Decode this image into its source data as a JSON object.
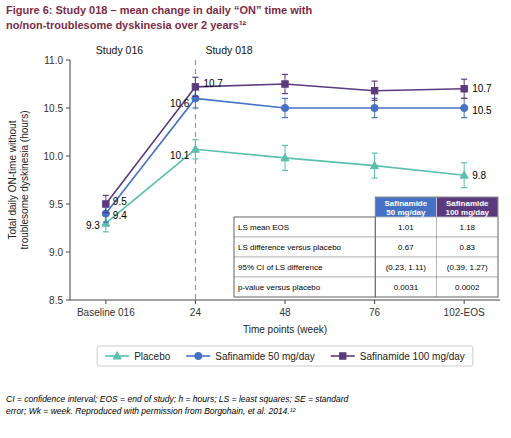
{
  "chart_data": {
    "type": "line",
    "title": "Figure 6: Study 018 – mean change in daily “ON” time with\nno/non-troublesome dyskinesia over 2 years¹²",
    "x_label": "Time points (week)",
    "y_label": "Total daily ON-time without\ntroublesome dyskinesia (hours)",
    "categories": [
      "Baseline 016",
      "24",
      "48",
      "76",
      "102-EOS"
    ],
    "ylim": [
      8.5,
      11.0
    ],
    "yticks": [
      8.5,
      {
        "value": 9.0,
        "label": "9.0"
      },
      9.5,
      {
        "value": 10.0,
        "label": "10.0"
      },
      10.5,
      {
        "value": 11.0,
        "label": "11.0"
      }
    ],
    "grid": false,
    "legend": "bottom",
    "data_labels": true,
    "series": [
      {
        "name": "Placebo",
        "color": "#5BBFAD",
        "marker": "triangle",
        "values": [
          9.3,
          10.07,
          9.98,
          9.9,
          9.8
        ],
        "errors": [
          0.09,
          0.1,
          0.13,
          0.13,
          0.13
        ],
        "value_labels": [
          "9.3",
          "10.1",
          null,
          null,
          "9.8"
        ]
      },
      {
        "name": "Safinamide 50 mg/day",
        "color": "#4472C4",
        "marker": "circle",
        "values": [
          9.4,
          10.6,
          10.5,
          10.5,
          10.5
        ],
        "errors": [
          0.09,
          0.1,
          0.1,
          0.1,
          0.1
        ],
        "value_labels": [
          "9.4",
          "10.6",
          null,
          null,
          "10.5"
        ]
      },
      {
        "name": "Safinamide 100 mg/day",
        "color": "#5B3A7E",
        "marker": "square",
        "values": [
          9.5,
          10.72,
          10.75,
          10.68,
          10.7
        ],
        "errors": [
          0.09,
          0.1,
          0.1,
          0.1,
          0.1
        ],
        "value_labels": [
          "9.5",
          "10.7",
          null,
          null,
          "10.7"
        ]
      }
    ],
    "vlines": [
      {
        "x": "24",
        "line_style": "dashed"
      }
    ],
    "annotations": [
      {
        "text": "Study 016"
      },
      {
        "text": "Study 018"
      }
    ],
    "table": {
      "columns": [
        "Safinamide\n50 mg/day",
        "Safinamide\n100 mg/day"
      ],
      "colors": [
        "#4472C4",
        "#5B3A7E"
      ],
      "rows": [
        "LS mean EOS",
        "LS difference versus placebo",
        "95% CI of LS difference",
        "p-value versus placebo"
      ],
      "cells": [
        [
          "1.01",
          "1.18"
        ],
        [
          "0.67",
          "0.83"
        ],
        [
          "(0.23, 1.11)",
          "(0.39, 1.27)"
        ],
        [
          "0.0031",
          "0.0002"
        ]
      ]
    },
    "footnote": "CI = confidence interval; EOS = end of study; h = hours; LS = least squares; SE = standard\nerror; Wk = week. Reproduced with permission from Borgohain, et al. 2014.¹²"
  }
}
